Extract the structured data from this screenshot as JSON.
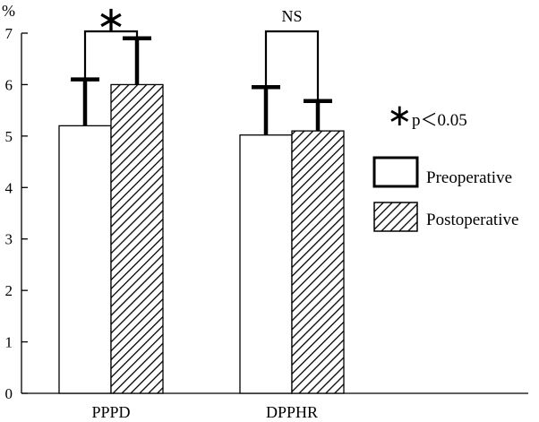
{
  "chart_data": {
    "type": "bar",
    "title": "",
    "ylabel": "%",
    "xlabel": "",
    "ylim": [
      0,
      7
    ],
    "yticks": [
      "0",
      "1",
      "2",
      "3",
      "4",
      "5",
      "6",
      "7"
    ],
    "categories": [
      "PPPD",
      "DPPHR"
    ],
    "series": [
      {
        "name": "Preoperative",
        "values": [
          5.2,
          5.02
        ],
        "error_upper": [
          0.9,
          0.93
        ],
        "fill": "white"
      },
      {
        "name": "Postoperative",
        "values": [
          6.0,
          5.1
        ],
        "error_upper": [
          0.9,
          0.58
        ],
        "fill": "diagonal-hatch"
      }
    ],
    "significance": [
      {
        "category": "PPPD",
        "label": "∗"
      },
      {
        "category": "DPPHR",
        "label": "NS"
      }
    ],
    "legend": {
      "position": "right",
      "star_symbol": "∗",
      "note": "p＜0.05"
    },
    "grid": false
  },
  "colors": {
    "ink": "#000000",
    "background": "#ffffff"
  }
}
